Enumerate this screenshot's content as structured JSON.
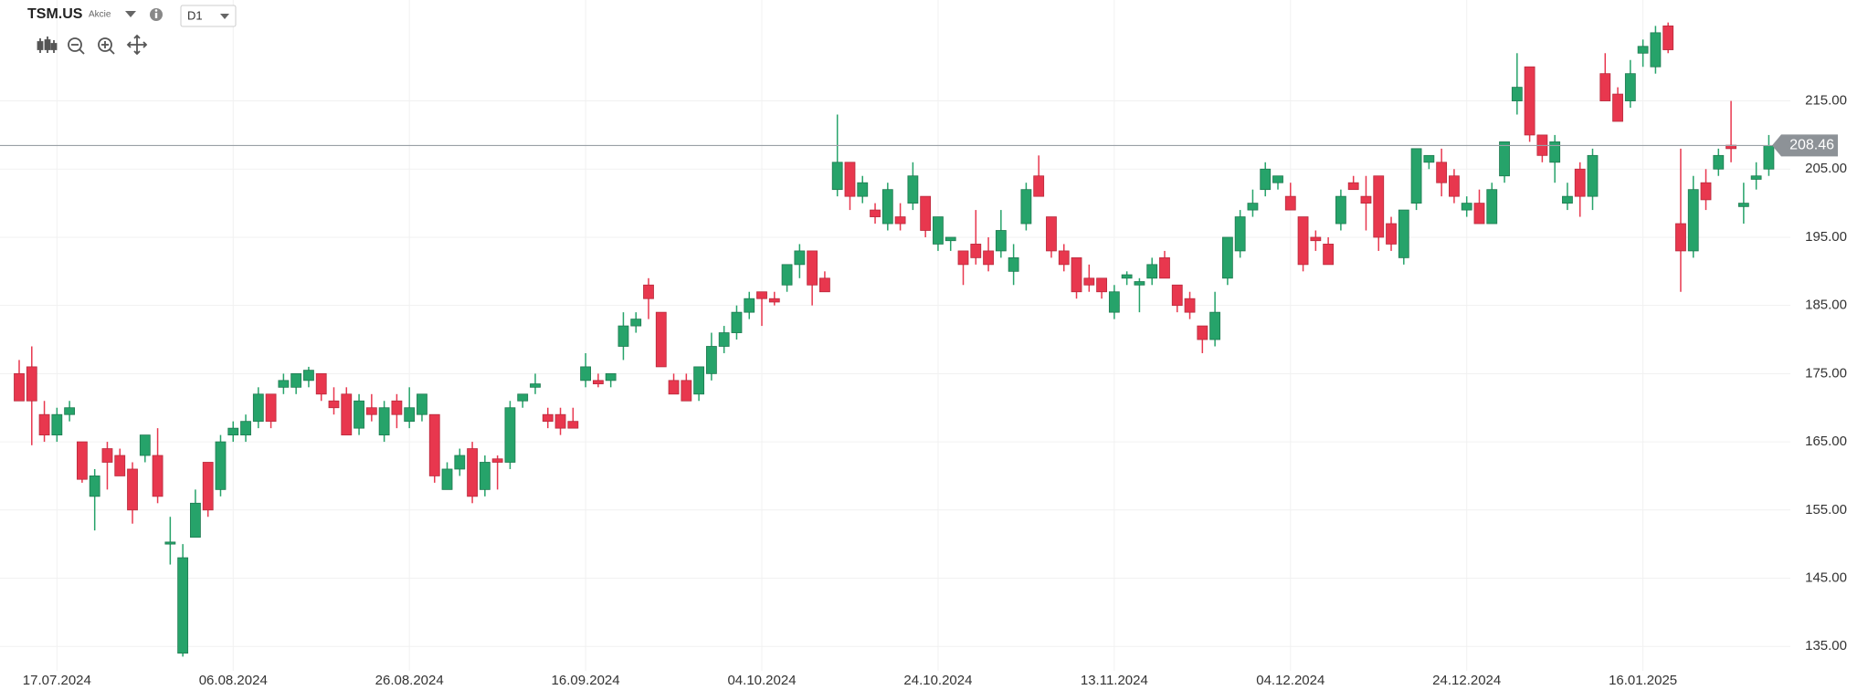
{
  "header": {
    "symbol": "TSM.US",
    "asset_class": "Akcie",
    "timeframe": "D1"
  },
  "chart_data": {
    "type": "candlestick",
    "categories": [
      null,
      null,
      null,
      "17.07.2024",
      null,
      null,
      null,
      null,
      null,
      null,
      null,
      null,
      null,
      null,
      null,
      null,
      null,
      "06.08.2024",
      null,
      null,
      null,
      null,
      null,
      null,
      null,
      null,
      null,
      null,
      null,
      null,
      null,
      "26.08.2024",
      null,
      null,
      null,
      null,
      null,
      null,
      null,
      null,
      null,
      null,
      null,
      null,
      null,
      "16.09.2024",
      null,
      null,
      null,
      null,
      null,
      null,
      null,
      null,
      null,
      null,
      null,
      null,
      null,
      "04.10.2024",
      null,
      null,
      null,
      null,
      null,
      null,
      null,
      null,
      null,
      null,
      null,
      null,
      null,
      "24.10.2024",
      null,
      null,
      null,
      null,
      null,
      null,
      null,
      null,
      null,
      null,
      null,
      null,
      null,
      "13.11.2024",
      null,
      null,
      null,
      null,
      null,
      null,
      null,
      null,
      null,
      null,
      null,
      null,
      null,
      "04.12.2024",
      null,
      null,
      null,
      null,
      null,
      null,
      null,
      null,
      null,
      null,
      null,
      null,
      null,
      "24.12.2024",
      null,
      null,
      null,
      null,
      null,
      null,
      null,
      null,
      null,
      null,
      null,
      null,
      null,
      "16.01.2025",
      null,
      null,
      null,
      null,
      null,
      null,
      null,
      null,
      null,
      null
    ],
    "ohlc": [
      [
        175,
        177,
        171,
        171
      ],
      [
        176,
        179,
        164.5,
        171
      ],
      [
        169,
        171,
        165,
        166
      ],
      [
        166,
        170,
        165,
        169
      ],
      [
        169,
        171,
        168,
        170
      ],
      [
        165,
        165,
        159,
        159.5
      ],
      [
        157,
        161,
        152,
        160
      ],
      [
        164,
        165,
        158,
        162
      ],
      [
        163,
        164,
        160,
        160
      ],
      [
        161,
        162,
        153,
        155
      ],
      [
        163,
        166,
        162,
        166
      ],
      [
        163,
        167,
        156,
        157
      ],
      [
        150,
        154,
        147,
        150.3
      ],
      [
        134,
        150,
        133.5,
        148
      ],
      [
        151,
        158,
        151,
        156
      ],
      [
        162,
        162,
        154,
        155
      ],
      [
        158,
        166,
        157,
        165
      ],
      [
        166,
        168,
        165,
        167
      ],
      [
        166,
        169,
        165,
        168
      ],
      [
        168,
        173,
        167,
        172
      ],
      [
        172,
        172,
        167,
        168
      ],
      [
        173,
        175,
        172,
        174
      ],
      [
        173,
        175,
        172,
        175
      ],
      [
        174,
        176,
        173,
        175.5
      ],
      [
        175,
        175,
        171,
        172
      ],
      [
        171,
        173,
        169,
        170
      ],
      [
        172,
        173,
        166,
        166
      ],
      [
        167,
        172,
        166,
        171
      ],
      [
        170,
        172,
        168,
        169
      ],
      [
        166,
        171,
        165,
        170
      ],
      [
        171,
        172,
        167,
        169
      ],
      [
        168,
        173,
        167,
        170
      ],
      [
        169,
        172,
        168,
        172
      ],
      [
        169,
        169,
        159,
        160
      ],
      [
        158,
        162,
        158,
        161
      ],
      [
        161,
        164,
        160,
        163
      ],
      [
        164,
        165,
        156,
        157
      ],
      [
        158,
        163,
        157,
        162
      ],
      [
        162.5,
        163,
        158,
        162
      ],
      [
        162,
        171,
        161,
        170
      ],
      [
        171,
        172,
        170,
        172
      ],
      [
        173,
        175,
        172,
        173.5
      ],
      [
        169,
        170,
        167,
        168
      ],
      [
        169,
        170,
        166,
        167
      ],
      [
        168,
        170,
        167,
        167
      ],
      [
        174,
        178,
        173,
        176
      ],
      [
        174,
        175,
        173,
        173.5
      ],
      [
        174,
        175,
        173,
        175
      ],
      [
        179,
        184,
        177,
        182
      ],
      [
        182,
        184,
        181,
        183
      ],
      [
        188,
        189,
        183,
        186
      ],
      [
        184,
        184,
        176,
        176
      ],
      [
        174,
        175,
        172,
        172
      ],
      [
        174,
        175,
        171,
        171
      ],
      [
        172,
        176,
        171,
        176
      ],
      [
        175,
        181,
        174,
        179
      ],
      [
        179,
        182,
        178,
        181
      ],
      [
        181,
        185,
        180,
        184
      ],
      [
        184,
        187,
        183,
        186
      ],
      [
        187,
        187,
        182,
        186
      ],
      [
        186,
        187,
        185,
        185.5
      ],
      [
        188,
        191,
        187,
        191
      ],
      [
        191,
        194,
        189,
        193
      ],
      [
        193,
        193,
        185,
        188
      ],
      [
        189,
        190,
        187,
        187
      ],
      [
        202,
        213,
        201,
        206
      ],
      [
        206,
        206,
        199,
        201
      ],
      [
        201,
        204,
        200,
        203
      ],
      [
        199,
        200,
        197,
        198
      ],
      [
        197,
        203,
        196,
        202
      ],
      [
        198,
        200,
        196,
        197
      ],
      [
        200,
        206,
        199,
        204
      ],
      [
        201,
        201,
        195,
        196
      ],
      [
        194,
        198,
        193,
        198
      ],
      [
        194.5,
        195,
        193,
        195
      ],
      [
        193,
        193,
        188,
        191
      ],
      [
        194,
        199,
        191,
        192
      ],
      [
        193,
        195,
        190,
        191
      ],
      [
        193,
        199,
        192,
        196
      ],
      [
        190,
        194,
        188,
        192
      ],
      [
        197,
        203,
        196,
        202
      ],
      [
        204,
        207,
        201,
        201
      ],
      [
        198,
        198,
        192,
        193
      ],
      [
        193,
        194,
        190,
        191
      ],
      [
        192,
        192,
        186,
        187
      ],
      [
        189,
        191,
        187,
        188
      ],
      [
        189,
        189,
        186,
        187
      ],
      [
        184,
        188,
        183,
        187
      ],
      [
        189,
        190,
        188,
        189.5
      ],
      [
        188,
        189,
        184,
        188.5
      ],
      [
        189,
        192,
        188,
        191
      ],
      [
        192,
        193,
        189,
        189
      ],
      [
        188,
        188,
        184,
        185
      ],
      [
        186,
        187,
        183,
        184
      ],
      [
        182,
        182,
        178,
        180
      ],
      [
        180,
        187,
        179,
        184
      ],
      [
        189,
        195,
        188,
        195
      ],
      [
        193,
        199,
        192,
        198
      ],
      [
        199,
        202,
        198,
        200
      ],
      [
        202,
        206,
        201,
        205
      ],
      [
        203,
        204,
        202,
        204
      ],
      [
        201,
        203,
        199,
        199
      ],
      [
        198,
        198,
        190,
        191
      ],
      [
        195,
        196,
        193,
        194.5
      ],
      [
        194,
        195,
        191,
        191
      ],
      [
        197,
        202,
        196,
        201
      ],
      [
        203,
        204,
        202,
        202
      ],
      [
        201,
        204,
        196,
        200
      ],
      [
        204,
        204,
        193,
        195
      ],
      [
        197,
        198,
        193,
        194
      ],
      [
        192,
        199,
        191,
        199
      ],
      [
        200,
        208,
        199,
        208
      ],
      [
        206,
        207,
        205,
        207
      ],
      [
        206,
        208,
        201,
        203
      ],
      [
        204,
        205,
        200,
        201
      ],
      [
        199,
        201,
        198,
        200
      ],
      [
        200,
        202,
        197,
        197
      ],
      [
        197,
        203,
        197,
        202
      ],
      [
        204,
        209,
        203,
        209
      ],
      [
        215,
        222,
        213,
        217
      ],
      [
        220,
        220,
        209,
        210
      ],
      [
        210,
        210,
        206,
        207
      ],
      [
        206,
        210,
        203,
        209
      ],
      [
        200,
        203,
        199,
        201
      ],
      [
        205,
        206,
        198,
        201
      ],
      [
        201,
        208,
        199,
        207
      ],
      [
        219,
        222,
        215,
        215
      ],
      [
        216,
        217,
        212,
        212
      ],
      [
        215,
        221,
        214,
        219
      ],
      [
        222,
        224,
        220,
        223
      ],
      [
        220,
        226,
        219,
        225
      ],
      [
        226,
        226.5,
        222,
        222.5
      ],
      [
        197,
        208,
        187,
        193
      ],
      [
        193,
        204,
        192,
        202
      ],
      [
        203,
        205,
        199,
        200.5
      ],
      [
        205,
        208,
        204,
        207
      ],
      [
        208.5,
        215,
        206,
        208
      ],
      [
        199.5,
        203,
        197,
        200
      ],
      [
        203.5,
        206,
        202,
        204
      ],
      [
        205,
        210,
        204,
        208.46
      ]
    ],
    "up_color": "#26a36a",
    "down_color": "#e8374e",
    "last_price": 208.46,
    "ylim": [
      128.6,
      229.8
    ],
    "yticks": [
      {
        "value": 135,
        "label": "135.00"
      },
      {
        "value": 145,
        "label": "145.00"
      },
      {
        "value": 155,
        "label": "155.00"
      },
      {
        "value": 165,
        "label": "165.00"
      },
      {
        "value": 175,
        "label": "175.00"
      },
      {
        "value": 185,
        "label": "185.00"
      },
      {
        "value": 195,
        "label": "195.00"
      },
      {
        "value": 205,
        "label": "205.00"
      },
      {
        "value": 215,
        "label": "215.00"
      }
    ],
    "grid": true
  }
}
